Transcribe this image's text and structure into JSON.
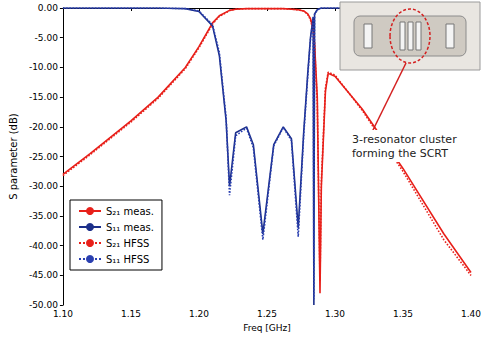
{
  "chart_data": {
    "type": "line",
    "xlabel": "Freq [GHz]",
    "ylabel": "S parameter (dB)",
    "x": [
      1.1,
      1.12,
      1.15,
      1.17,
      1.19,
      1.2,
      1.21,
      1.215,
      1.22,
      1.2225,
      1.227,
      1.235,
      1.24,
      1.247,
      1.255,
      1.262,
      1.268,
      1.273,
      1.277,
      1.28,
      1.282,
      1.284,
      1.2845,
      1.285,
      1.287,
      1.289,
      1.29,
      1.293,
      1.295,
      1.3,
      1.32,
      1.35,
      1.38,
      1.4
    ],
    "series": [
      {
        "name": "S₂₁ meas.",
        "color": "#e8201a",
        "line_style": "solid",
        "values": [
          -28,
          -24.5,
          -19,
          -15,
          -10,
          -6.5,
          -2.5,
          -1.3,
          -0.7,
          -0.4,
          -0.2,
          -0.1,
          -0.1,
          -0.1,
          -0.1,
          -0.1,
          -0.2,
          -0.3,
          -0.5,
          -1,
          -1.8,
          -3.5,
          -4.5,
          -6,
          -15,
          -48,
          -30,
          -14,
          -11,
          -11.5,
          -17,
          -27,
          -38,
          -44.5
        ]
      },
      {
        "name": "S₁₁ meas.",
        "color": "#1c2f8a",
        "line_style": "solid",
        "values": [
          0,
          0,
          0,
          0,
          -0.1,
          -0.6,
          -3,
          -8,
          -19,
          -30,
          -21,
          -20,
          -23,
          -38,
          -23,
          -20,
          -22,
          -37,
          -21,
          -11,
          -5,
          -1.5,
          -50,
          -1,
          -0.3,
          -0.1,
          0,
          0,
          0,
          0,
          0,
          0,
          0,
          0
        ]
      },
      {
        "name": "S₂₁ HFSS",
        "color": "#e8201a",
        "line_style": "dotted",
        "values": [
          -28.2,
          -24.7,
          -19.2,
          -15.2,
          -10.2,
          -6.7,
          -2.7,
          -1.4,
          -0.8,
          -0.4,
          -0.2,
          -0.1,
          -0.1,
          -0.1,
          -0.1,
          -0.1,
          -0.2,
          -0.3,
          -0.5,
          -1.1,
          -2,
          -3.8,
          -4.8,
          -6.3,
          -16,
          -46,
          -29,
          -13.5,
          -10.8,
          -11.3,
          -17.2,
          -27.5,
          -39,
          -45
        ]
      },
      {
        "name": "S₁₁ HFSS",
        "color": "#2a3fb0",
        "line_style": "dotted",
        "values": [
          0,
          0,
          0,
          0,
          -0.1,
          -0.5,
          -2.8,
          -7.5,
          -18.5,
          -31.5,
          -21.5,
          -20.2,
          -23.5,
          -39,
          -23.2,
          -20.1,
          -22.3,
          -38.5,
          -21.5,
          -11.5,
          -5.3,
          -1.6,
          -49,
          -1.1,
          -0.3,
          -0.1,
          0,
          0,
          0,
          0,
          0,
          0,
          0,
          0
        ]
      }
    ],
    "xlim": [
      1.1,
      1.4
    ],
    "xticks": [
      {
        "value": 1.1,
        "label": "1.10"
      },
      1.15,
      {
        "value": 1.2,
        "label": "1.20"
      },
      1.25,
      {
        "value": 1.3,
        "label": "1.30"
      },
      1.35,
      {
        "value": 1.4,
        "label": "1.40"
      }
    ],
    "ylim": [
      -50,
      0
    ],
    "yticks": [
      {
        "value": -50,
        "label": "-50.00"
      },
      {
        "value": -45,
        "label": "-45.00"
      },
      {
        "value": -40,
        "label": "-40.00"
      },
      {
        "value": -35,
        "label": "-35.00"
      },
      {
        "value": -30,
        "label": "-30.00"
      },
      {
        "value": -25,
        "label": "-25.00"
      },
      {
        "value": -20,
        "label": "-20.00"
      },
      {
        "value": -15,
        "label": "-15.00"
      },
      {
        "value": -10,
        "label": "-10.00"
      },
      {
        "value": -5,
        "label": "-5.00"
      },
      {
        "value": 0,
        "label": "0.00"
      }
    ],
    "grid": false,
    "legend": "lower left",
    "annotations": [
      "3-resonator cluster forming the SCRT"
    ]
  }
}
